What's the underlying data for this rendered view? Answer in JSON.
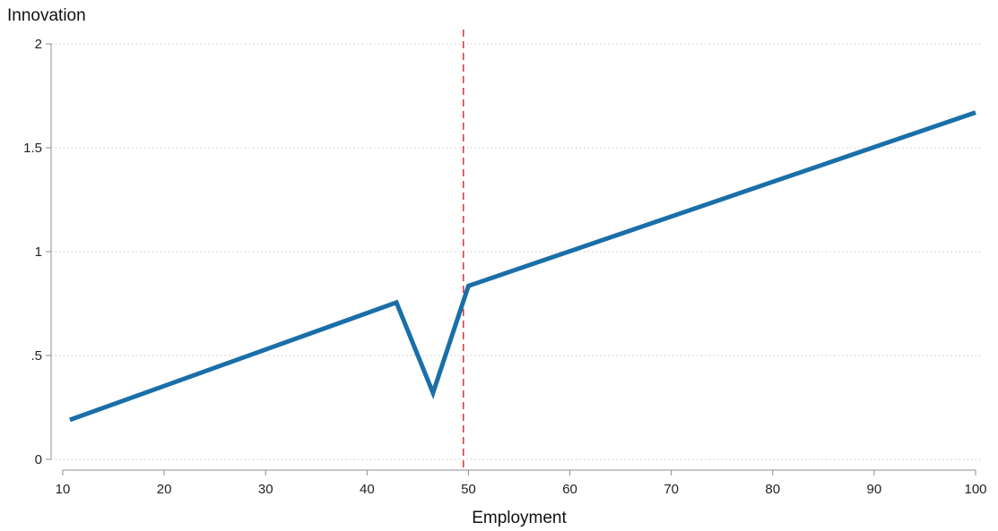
{
  "chart_data": {
    "type": "line",
    "title": "",
    "xlabel": "Employment",
    "ylabel": "Innovation",
    "xlim": [
      10,
      100
    ],
    "ylim": [
      0,
      2
    ],
    "x_ticks": [
      10,
      20,
      30,
      40,
      50,
      60,
      70,
      80,
      90,
      100
    ],
    "x_tick_labels": [
      "10",
      "20",
      "30",
      "40",
      "50",
      "60",
      "70",
      "80",
      "90",
      "100"
    ],
    "y_ticks": [
      0,
      0.5,
      1,
      1.5,
      2
    ],
    "y_tick_labels": [
      "0",
      ".5",
      "1",
      "1.5",
      "2"
    ],
    "grid": "horizontal dotted",
    "legend": "none",
    "series": [
      {
        "color": "#1a6fa8",
        "x": [
          10.7,
          42.9,
          46.5,
          50.0,
          100
        ],
        "y": [
          0.19,
          0.755,
          0.32,
          0.835,
          1.67
        ]
      }
    ],
    "annotations": [
      {
        "type": "vertical_line",
        "x": 49.5,
        "style": "dashed",
        "color": "#d62728"
      }
    ]
  }
}
